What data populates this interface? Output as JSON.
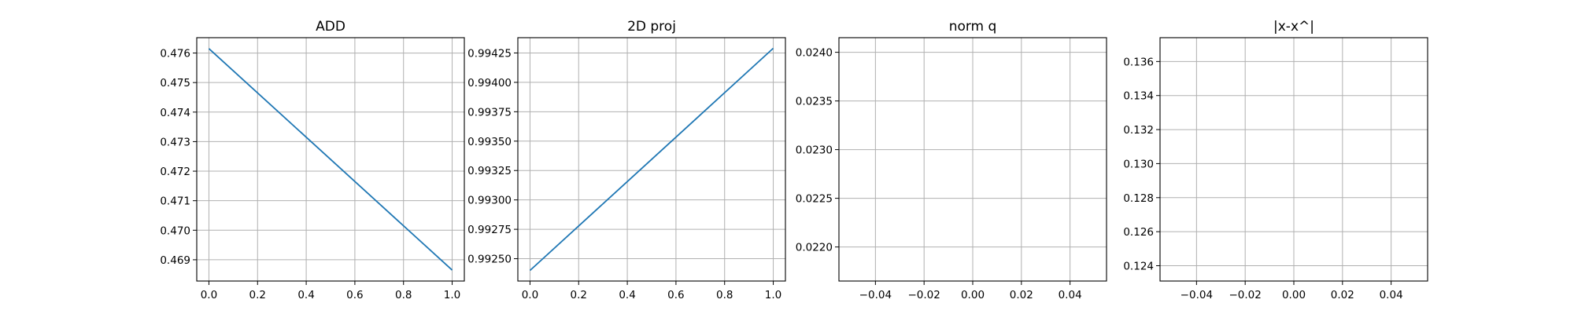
{
  "chart_data": [
    {
      "type": "line",
      "title": "ADD",
      "xlabel": "",
      "ylabel": "",
      "grid": true,
      "xlim": [
        -0.05,
        1.05
      ],
      "ylim": [
        0.46828,
        0.47652
      ],
      "xticks": [
        0.0,
        0.2,
        0.4,
        0.6,
        0.8,
        1.0
      ],
      "xtick_labels": [
        "0.0",
        "0.2",
        "0.4",
        "0.6",
        "0.8",
        "1.0"
      ],
      "yticks": [
        0.469,
        0.47,
        0.471,
        0.472,
        0.473,
        0.474,
        0.475,
        0.476
      ],
      "ytick_labels": [
        "0.469",
        "0.470",
        "0.471",
        "0.472",
        "0.473",
        "0.474",
        "0.475",
        "0.476"
      ],
      "series": [
        {
          "x": [
            0.0,
            1.0
          ],
          "values": [
            0.47615,
            0.46865
          ],
          "color": "#1f77b4"
        }
      ]
    },
    {
      "type": "line",
      "title": "2D proj",
      "xlabel": "",
      "ylabel": "",
      "grid": true,
      "xlim": [
        -0.05,
        1.05
      ],
      "ylim": [
        0.99231,
        0.99438
      ],
      "xticks": [
        0.0,
        0.2,
        0.4,
        0.6,
        0.8,
        1.0
      ],
      "xtick_labels": [
        "0.0",
        "0.2",
        "0.4",
        "0.6",
        "0.8",
        "1.0"
      ],
      "yticks": [
        0.9925,
        0.99275,
        0.993,
        0.99325,
        0.9935,
        0.99375,
        0.994,
        0.99425
      ],
      "ytick_labels": [
        "0.99250",
        "0.99275",
        "0.99300",
        "0.99325",
        "0.99350",
        "0.99375",
        "0.99400",
        "0.99425"
      ],
      "series": [
        {
          "x": [
            0.0,
            1.0
          ],
          "values": [
            0.9924,
            0.99429
          ],
          "color": "#1f77b4"
        }
      ]
    },
    {
      "type": "line",
      "title": "norm q",
      "xlabel": "",
      "ylabel": "",
      "grid": true,
      "xlim": [
        -0.055,
        0.055
      ],
      "ylim": [
        0.02165,
        0.02415
      ],
      "xticks": [
        -0.04,
        -0.02,
        0.0,
        0.02,
        0.04
      ],
      "xtick_labels": [
        "−0.04",
        "−0.02",
        "0.00",
        "0.02",
        "0.04"
      ],
      "yticks": [
        0.022,
        0.0225,
        0.023,
        0.0235,
        0.024
      ],
      "ytick_labels": [
        "0.0220",
        "0.0225",
        "0.0230",
        "0.0235",
        "0.0240"
      ],
      "series": []
    },
    {
      "type": "line",
      "title": "|x-x^|",
      "xlabel": "",
      "ylabel": "",
      "grid": true,
      "xlim": [
        -0.055,
        0.055
      ],
      "ylim": [
        0.1231,
        0.1374
      ],
      "xticks": [
        -0.04,
        -0.02,
        0.0,
        0.02,
        0.04
      ],
      "xtick_labels": [
        "−0.04",
        "−0.02",
        "0.00",
        "0.02",
        "0.04"
      ],
      "yticks": [
        0.124,
        0.126,
        0.128,
        0.13,
        0.132,
        0.134,
        0.136
      ],
      "ytick_labels": [
        "0.124",
        "0.126",
        "0.128",
        "0.130",
        "0.132",
        "0.134",
        "0.136"
      ],
      "series": []
    }
  ]
}
